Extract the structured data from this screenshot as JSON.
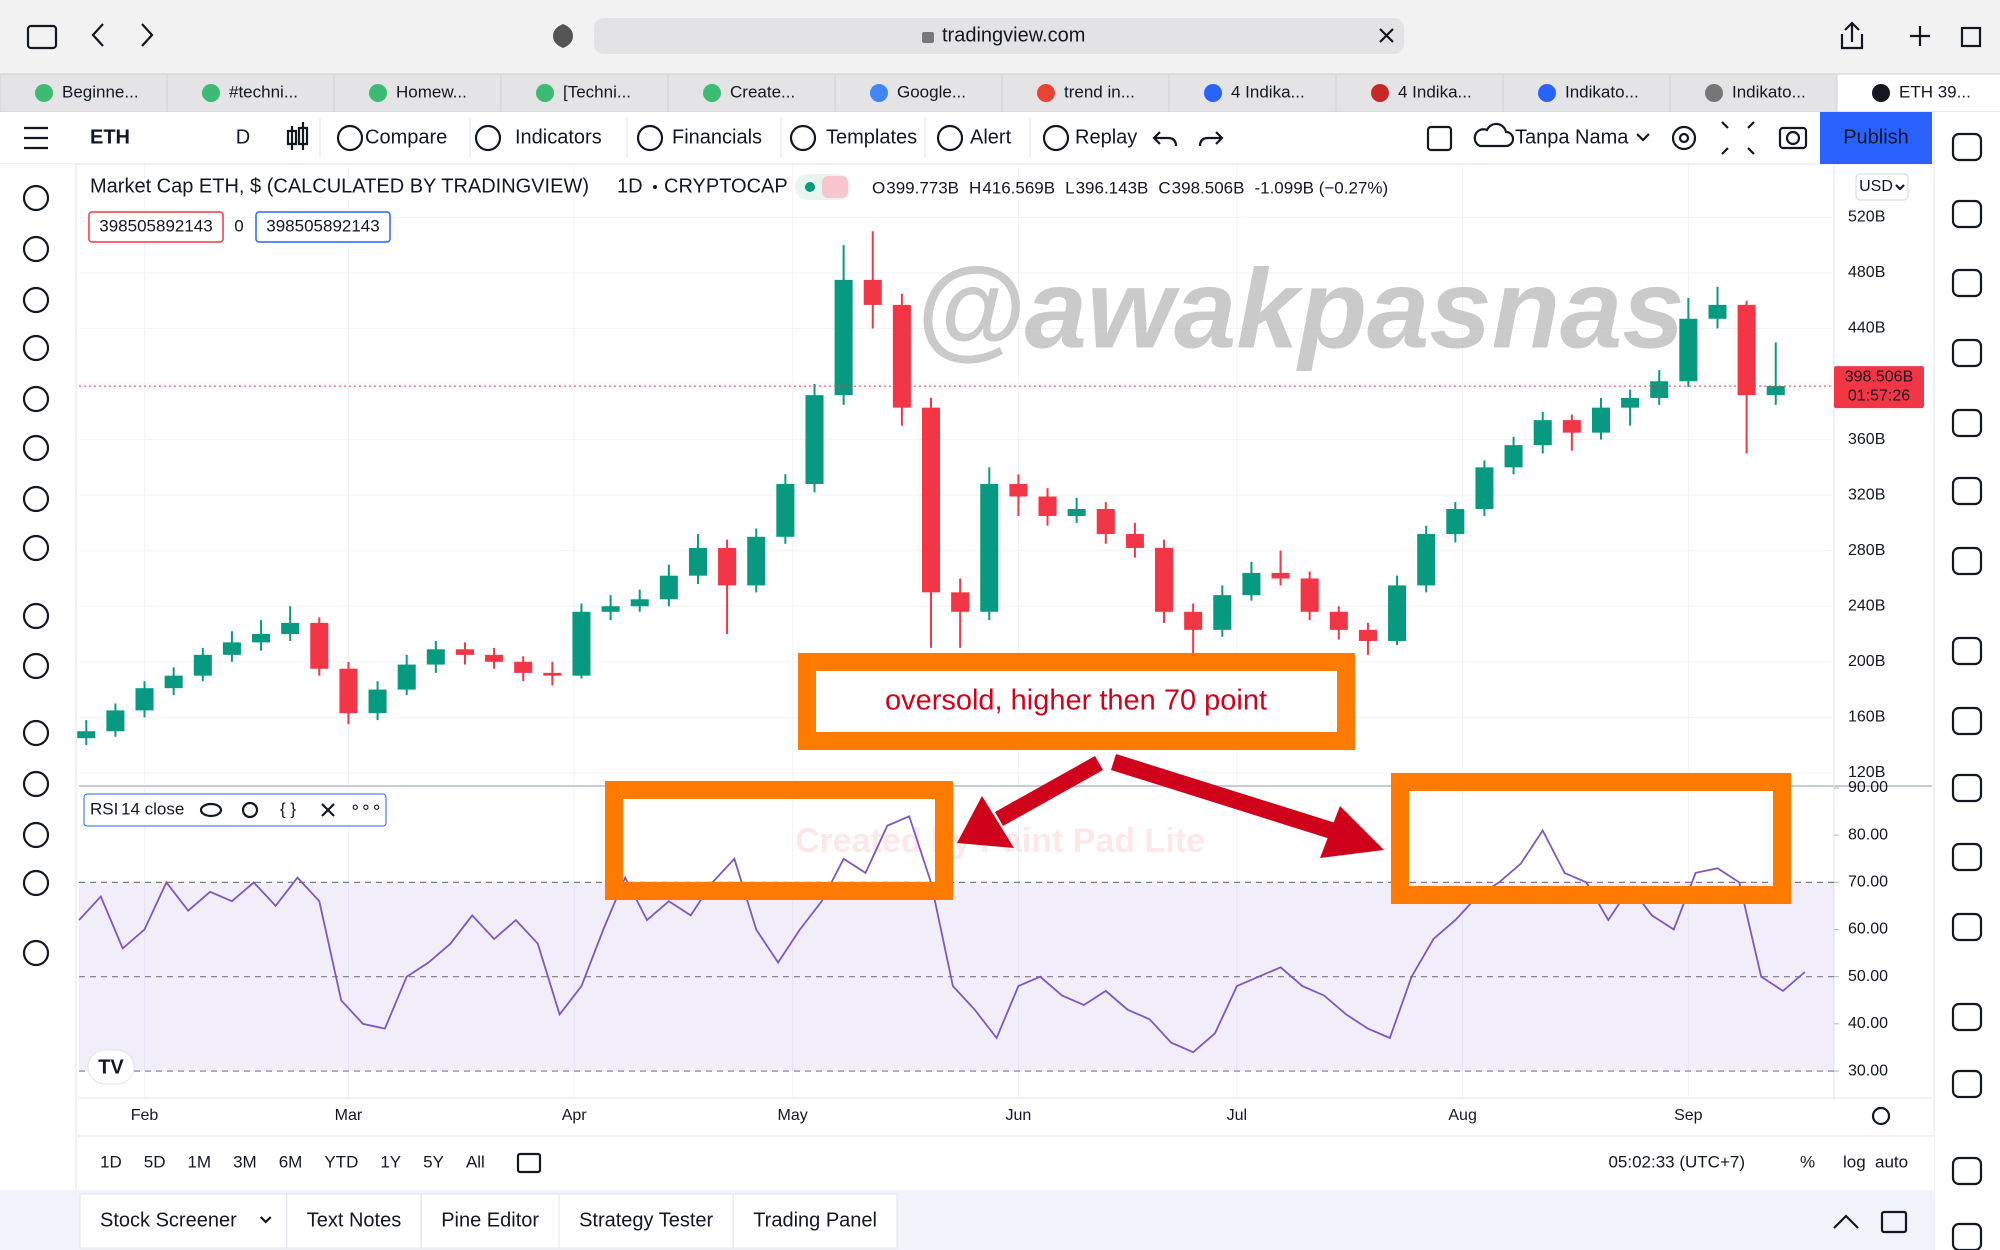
{
  "browser": {
    "url": "tradingview.com",
    "tabs": [
      "Beginne...",
      "#techni...",
      "Homew...",
      "[Techni...",
      "Create...",
      "Google...",
      "trend in...",
      "4 Indika...",
      "4 Indika...",
      "Indikato...",
      "Indikato...",
      "ETH 39..."
    ]
  },
  "toolbar": {
    "symbol": "ETH",
    "interval": "D",
    "buttons": [
      "Compare",
      "Indicators",
      "Financials",
      "Templates",
      "Alert",
      "Replay"
    ],
    "layout_name": "Tanpa Nama",
    "publish": "Publish"
  },
  "legend": {
    "title": "Market Cap ETH, $ (CALCULATED BY TRADINGVIEW)",
    "interval": "1D",
    "exchange": "CRYPTOCAP",
    "ohlc": [
      {
        "key": "O",
        "value": "399.773B"
      },
      {
        "key": "H",
        "value": "416.569B"
      },
      {
        "key": "L",
        "value": "396.143B"
      },
      {
        "key": "C",
        "value": "398.506B"
      },
      {
        "key": "",
        "value": "-1.099B (−0.27%)"
      }
    ],
    "bid": "398505892143",
    "spread": "0",
    "ask": "398505892143",
    "currency": "USD"
  },
  "chart_data": {
    "type": "candlestick",
    "xlim": [
      -9,
      232
    ],
    "xticks": [
      {
        "value": 0,
        "label": "Feb"
      },
      {
        "value": 28,
        "label": "Mar"
      },
      {
        "value": 59,
        "label": "Apr"
      },
      {
        "value": 89,
        "label": "May"
      },
      {
        "value": 120,
        "label": "Jun"
      },
      {
        "value": 150,
        "label": "Jul"
      },
      {
        "value": 181,
        "label": "Aug"
      },
      {
        "value": 212,
        "label": "Sep"
      }
    ],
    "ylim": [
      112,
      557
    ],
    "yticks": [
      {
        "value": 120,
        "label": "120B"
      },
      {
        "value": 160,
        "label": "160B"
      },
      {
        "value": 200,
        "label": "200B"
      },
      {
        "value": 240,
        "label": "240B"
      },
      {
        "value": 280,
        "label": "280B"
      },
      {
        "value": 320,
        "label": "320B"
      },
      {
        "value": 360,
        "label": "360B"
      },
      {
        "value": 400,
        "label": "400B"
      },
      {
        "value": 440,
        "label": "440B"
      },
      {
        "value": 480,
        "label": "480B"
      },
      {
        "value": 520,
        "label": "520B"
      }
    ],
    "up_color": "#089981",
    "down_color": "#f23645",
    "grid": true,
    "last_price": {
      "value": 398.506,
      "label": "398.506B",
      "countdown": "01:57:26"
    },
    "x": [
      -8,
      -4,
      0,
      4,
      8,
      12,
      16,
      20,
      24,
      28,
      32,
      36,
      40,
      44,
      48,
      52,
      56,
      60,
      64,
      68,
      72,
      76,
      80,
      84,
      88,
      92,
      96,
      100,
      104,
      108,
      112,
      116,
      120,
      124,
      128,
      132,
      136,
      140,
      144,
      148,
      152,
      156,
      160,
      164,
      168,
      172,
      176,
      180,
      184,
      188,
      192,
      196,
      200,
      204,
      208,
      212,
      216,
      220,
      224
    ],
    "ohlc": [
      [
        145,
        158,
        140,
        150
      ],
      [
        150,
        170,
        146,
        165
      ],
      [
        165,
        186,
        160,
        181
      ],
      [
        181,
        196,
        176,
        190
      ],
      [
        190,
        210,
        186,
        205
      ],
      [
        205,
        222,
        200,
        214
      ],
      [
        214,
        230,
        208,
        220
      ],
      [
        220,
        240,
        215,
        228
      ],
      [
        228,
        232,
        190,
        195
      ],
      [
        195,
        200,
        155,
        163
      ],
      [
        163,
        186,
        158,
        180
      ],
      [
        180,
        205,
        176,
        198
      ],
      [
        198,
        215,
        192,
        209
      ],
      [
        209,
        214,
        198,
        205
      ],
      [
        205,
        210,
        195,
        200
      ],
      [
        200,
        204,
        186,
        192
      ],
      [
        192,
        200,
        183,
        190
      ],
      [
        190,
        242,
        188,
        236
      ],
      [
        236,
        248,
        230,
        240
      ],
      [
        240,
        252,
        236,
        245
      ],
      [
        245,
        270,
        240,
        262
      ],
      [
        262,
        292,
        256,
        282
      ],
      [
        282,
        288,
        220,
        255
      ],
      [
        255,
        296,
        250,
        290
      ],
      [
        290,
        335,
        285,
        328
      ],
      [
        328,
        400,
        322,
        392
      ],
      [
        392,
        500,
        385,
        475
      ],
      [
        475,
        510,
        440,
        457
      ],
      [
        457,
        465,
        370,
        383
      ],
      [
        383,
        390,
        210,
        250
      ],
      [
        250,
        260,
        210,
        236
      ],
      [
        236,
        340,
        230,
        328
      ],
      [
        328,
        335,
        305,
        319
      ],
      [
        319,
        325,
        298,
        305
      ],
      [
        305,
        318,
        300,
        310
      ],
      [
        310,
        315,
        285,
        292
      ],
      [
        292,
        300,
        275,
        282
      ],
      [
        282,
        288,
        228,
        236
      ],
      [
        236,
        242,
        205,
        223
      ],
      [
        223,
        255,
        218,
        248
      ],
      [
        248,
        272,
        244,
        264
      ],
      [
        264,
        280,
        255,
        260
      ],
      [
        260,
        265,
        230,
        236
      ],
      [
        236,
        240,
        216,
        223
      ],
      [
        223,
        228,
        205,
        215
      ],
      [
        215,
        262,
        212,
        255
      ],
      [
        255,
        298,
        250,
        292
      ],
      [
        292,
        315,
        286,
        310
      ],
      [
        310,
        345,
        305,
        340
      ],
      [
        340,
        362,
        335,
        356
      ],
      [
        356,
        380,
        350,
        374
      ],
      [
        374,
        378,
        352,
        365
      ],
      [
        365,
        390,
        360,
        383
      ],
      [
        383,
        396,
        370,
        390
      ],
      [
        390,
        410,
        385,
        402
      ],
      [
        402,
        462,
        398,
        447
      ],
      [
        447,
        470,
        440,
        457
      ],
      [
        457,
        460,
        350,
        392
      ],
      [
        392,
        430,
        385,
        398.506
      ]
    ]
  },
  "rsi": {
    "type": "line",
    "label": "RSI",
    "params": "14 close",
    "color": "#7e57c2",
    "band_color": "#7e57c2",
    "upper": 70,
    "middle": 50,
    "lower": 30,
    "ylim": [
      24.5,
      90
    ],
    "yticks": [
      {
        "value": 30,
        "label": "30.00"
      },
      {
        "value": 40,
        "label": "40.00"
      },
      {
        "value": 50,
        "label": "50.00"
      },
      {
        "value": 60,
        "label": "60.00"
      },
      {
        "value": 70,
        "label": "70.00"
      },
      {
        "value": 80,
        "label": "80.00"
      },
      {
        "value": 90,
        "label": "90.00"
      }
    ],
    "x": [
      -9,
      -6,
      -3,
      0,
      3,
      6,
      9,
      12,
      15,
      18,
      21,
      24,
      27,
      30,
      33,
      36,
      39,
      42,
      45,
      48,
      51,
      54,
      57,
      60,
      63,
      66,
      69,
      72,
      75,
      78,
      81,
      84,
      87,
      90,
      93,
      96,
      99,
      102,
      105,
      108,
      111,
      114,
      117,
      120,
      123,
      126,
      129,
      132,
      135,
      138,
      141,
      144,
      147,
      150,
      153,
      156,
      159,
      162,
      165,
      168,
      171,
      174,
      177,
      180,
      183,
      186,
      189,
      192,
      195,
      198,
      201,
      204,
      207,
      210,
      213,
      216,
      219,
      222,
      225,
      228
    ],
    "values": [
      62,
      67,
      56,
      60,
      70,
      64,
      68,
      66,
      70,
      65,
      71,
      66,
      45,
      40,
      39,
      50,
      53,
      57,
      63,
      58,
      62,
      57,
      42,
      48,
      60,
      71,
      62,
      66,
      63,
      70,
      75,
      60,
      53,
      60,
      66,
      75,
      72,
      82,
      84,
      70,
      48,
      43,
      37,
      48,
      50,
      46,
      44,
      47,
      43,
      41,
      36,
      34,
      38,
      48,
      50,
      52,
      48,
      46,
      42,
      39,
      37,
      50,
      58,
      62,
      67,
      70,
      74,
      81,
      72,
      70,
      62,
      69,
      63,
      60,
      72,
      73,
      70,
      50,
      47,
      51
    ]
  },
  "annotations": {
    "note": "oversold, higher then 70 point",
    "watermark": "@awakpasnas",
    "app_watermark": "Created by Paint Pad Lite"
  },
  "bottom_bar": {
    "ranges": [
      "1D",
      "5D",
      "1M",
      "3M",
      "6M",
      "YTD",
      "1Y",
      "5Y",
      "All"
    ],
    "clock": "05:02:33 (UTC+7)",
    "scale_options": [
      "%",
      "log",
      "auto"
    ],
    "panels": [
      "Stock Screener",
      "Text Notes",
      "Pine Editor",
      "Strategy Tester",
      "Trading Panel"
    ]
  }
}
